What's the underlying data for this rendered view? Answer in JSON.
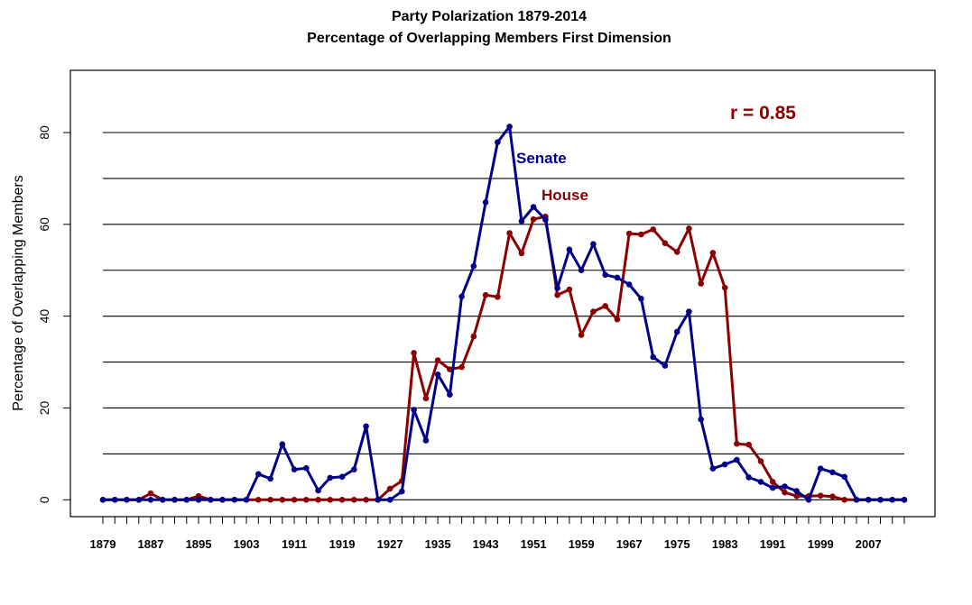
{
  "chart_data": {
    "type": "line",
    "title": "Party Polarization 1879-2014",
    "subtitle": "Percentage of Overlapping Members First Dimension",
    "xlabel": "",
    "ylabel": "Percentage of Overlapping Members",
    "x": [
      1879,
      1881,
      1883,
      1885,
      1887,
      1889,
      1891,
      1893,
      1895,
      1897,
      1899,
      1901,
      1903,
      1905,
      1907,
      1909,
      1911,
      1913,
      1915,
      1917,
      1919,
      1921,
      1923,
      1925,
      1927,
      1929,
      1931,
      1933,
      1935,
      1937,
      1939,
      1941,
      1943,
      1945,
      1947,
      1949,
      1951,
      1953,
      1955,
      1957,
      1959,
      1961,
      1963,
      1965,
      1967,
      1969,
      1971,
      1973,
      1975,
      1977,
      1979,
      1981,
      1983,
      1985,
      1987,
      1989,
      1991,
      1993,
      1995,
      1997,
      1999,
      2001,
      2003,
      2005,
      2007,
      2009,
      2011,
      2013
    ],
    "x_tick_labels": [
      "1879",
      "1887",
      "1895",
      "1903",
      "1911",
      "1919",
      "1927",
      "1935",
      "1943",
      "1951",
      "1959",
      "1967",
      "1975",
      "1983",
      "1991",
      "1999",
      "2007"
    ],
    "y_ticks": [
      0,
      20,
      40,
      60,
      80
    ],
    "y_tick_labels": [
      "0",
      "20",
      "40",
      "60",
      "80"
    ],
    "gridlines": [
      0,
      10,
      20,
      30,
      40,
      50,
      60,
      70,
      80
    ],
    "ylim": [
      -3.5,
      93
    ],
    "grid": true,
    "series": [
      {
        "name": "Senate",
        "color": "#00008B",
        "values": [
          0,
          0,
          0,
          0,
          0,
          0,
          0,
          0,
          0,
          0,
          0,
          0,
          0,
          5.6,
          4.6,
          12.1,
          6.6,
          6.9,
          2.0,
          4.8,
          5.0,
          6.6,
          16.0,
          0,
          0,
          1.8,
          19.6,
          12.9,
          27.3,
          22.9,
          44.3,
          50.9,
          64.8,
          77.9,
          81.3,
          60.7,
          63.8,
          61.0,
          46.1,
          54.5,
          50.0,
          55.7,
          49.0,
          48.4,
          46.9,
          43.8,
          31.1,
          29.2,
          36.6,
          41.0,
          17.5,
          6.8,
          7.7,
          8.7,
          4.9,
          3.9,
          2.6,
          2.9,
          1.9,
          0,
          6.8,
          6.0,
          5.0,
          0,
          0,
          0,
          0,
          0
        ]
      },
      {
        "name": "House",
        "color": "#8B0000",
        "values": [
          0,
          0,
          0,
          0,
          1.4,
          0,
          0,
          0,
          0.8,
          0,
          0,
          0,
          0,
          0,
          0,
          0,
          0,
          0,
          0,
          0,
          0,
          0,
          0,
          0,
          2.4,
          4.1,
          32.0,
          22.1,
          30.4,
          28.4,
          28.9,
          35.6,
          44.6,
          44.2,
          58.1,
          53.7,
          61.1,
          61.7,
          44.6,
          45.8,
          35.9,
          41.0,
          42.2,
          39.3,
          58.0,
          57.8,
          58.9,
          55.9,
          54.0,
          59.1,
          47.1,
          53.8,
          46.2,
          12.2,
          12.0,
          8.4,
          3.9,
          1.6,
          0.8,
          0.8,
          0.9,
          0.7,
          0,
          0,
          0,
          0,
          0,
          0
        ]
      }
    ],
    "annotations": {
      "senate_label": "Senate",
      "house_label": "House",
      "correlation": "r =  0.85"
    }
  }
}
